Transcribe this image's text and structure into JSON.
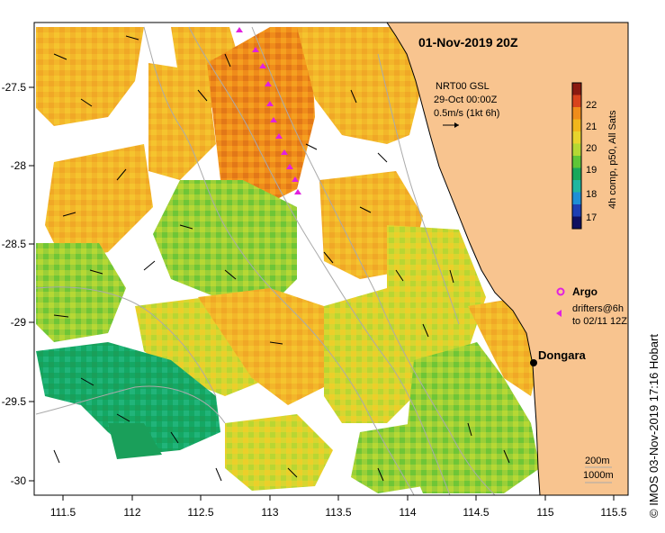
{
  "map": {
    "title": "01-Nov-2019 20Z",
    "lon_ticks": [
      "111.5",
      "112",
      "112.5",
      "113",
      "113.5",
      "114",
      "114.5",
      "115",
      "115.5"
    ],
    "lat_ticks": [
      "-27.5",
      "-28",
      "-28.5",
      "-29",
      "-29.5",
      "-30"
    ],
    "vector_key": {
      "line1": "NRT00 GSL",
      "line2": "29-Oct 00:00Z",
      "line3": "0.5m/s (1kt 6h)"
    },
    "colorbar": {
      "label": "4h comp, p50, All Sats",
      "ticks": [
        "22",
        "21",
        "20",
        "19",
        "18",
        "17"
      ],
      "colors": [
        "#8b1a10",
        "#d9431c",
        "#f08c1a",
        "#f2b61c",
        "#e8d42c",
        "#b5d833",
        "#5fc637",
        "#1aa85a",
        "#20b6a0",
        "#1e8fd6",
        "#1e3fb3",
        "#101060"
      ]
    },
    "legend": {
      "argo_label": "Argo",
      "drifter_line1": "drifters@6h",
      "drifter_line2": "to 02/11 12Z"
    },
    "place": {
      "name": "Dongara"
    },
    "depth_legend": {
      "a": "200m",
      "b": "1000m"
    },
    "credit": "© IMOS 03-Nov-2019 17:16 Hobart",
    "colors": {
      "land": "#f8c48f",
      "argo": "#e020e0",
      "drifter": "#e020e0",
      "contour": "#aaaaaa"
    }
  }
}
